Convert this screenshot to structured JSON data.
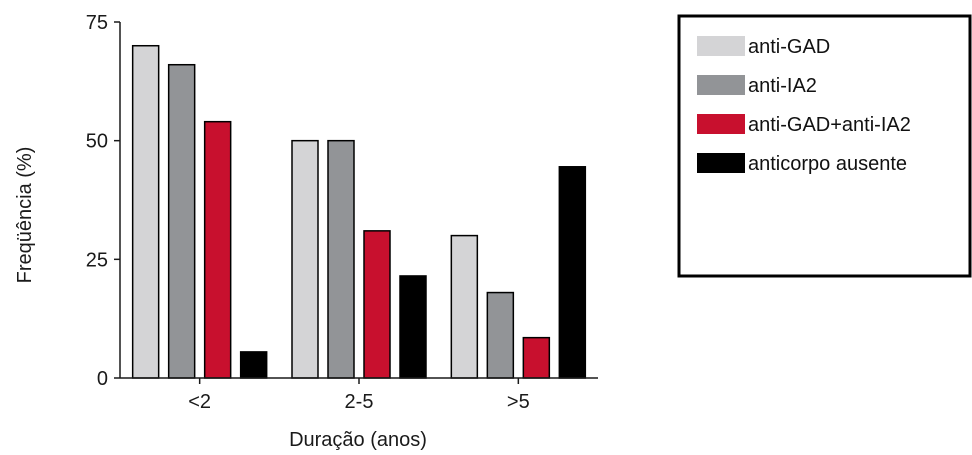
{
  "chart_data": {
    "type": "bar",
    "title": "",
    "xlabel": "Duração (anos)",
    "ylabel": "Freqüência (%)",
    "categories": [
      "<2",
      "2-5",
      ">5"
    ],
    "yticks": [
      0,
      25,
      50,
      75
    ],
    "ylim": [
      0,
      75
    ],
    "grid": false,
    "legend_position": "top-right",
    "series": [
      {
        "name": "anti-GAD",
        "color": "#d4d4d6",
        "values": [
          70,
          50,
          30
        ]
      },
      {
        "name": "anti-IA2",
        "color": "#929497",
        "values": [
          66,
          50,
          18
        ]
      },
      {
        "name": "anti-GAD+anti-IA2",
        "color": "#c8102e",
        "values": [
          54,
          31,
          8.5
        ]
      },
      {
        "name": "anticorpo ausente",
        "color": "#000000",
        "values": [
          5.5,
          21.5,
          44.5
        ]
      }
    ]
  }
}
